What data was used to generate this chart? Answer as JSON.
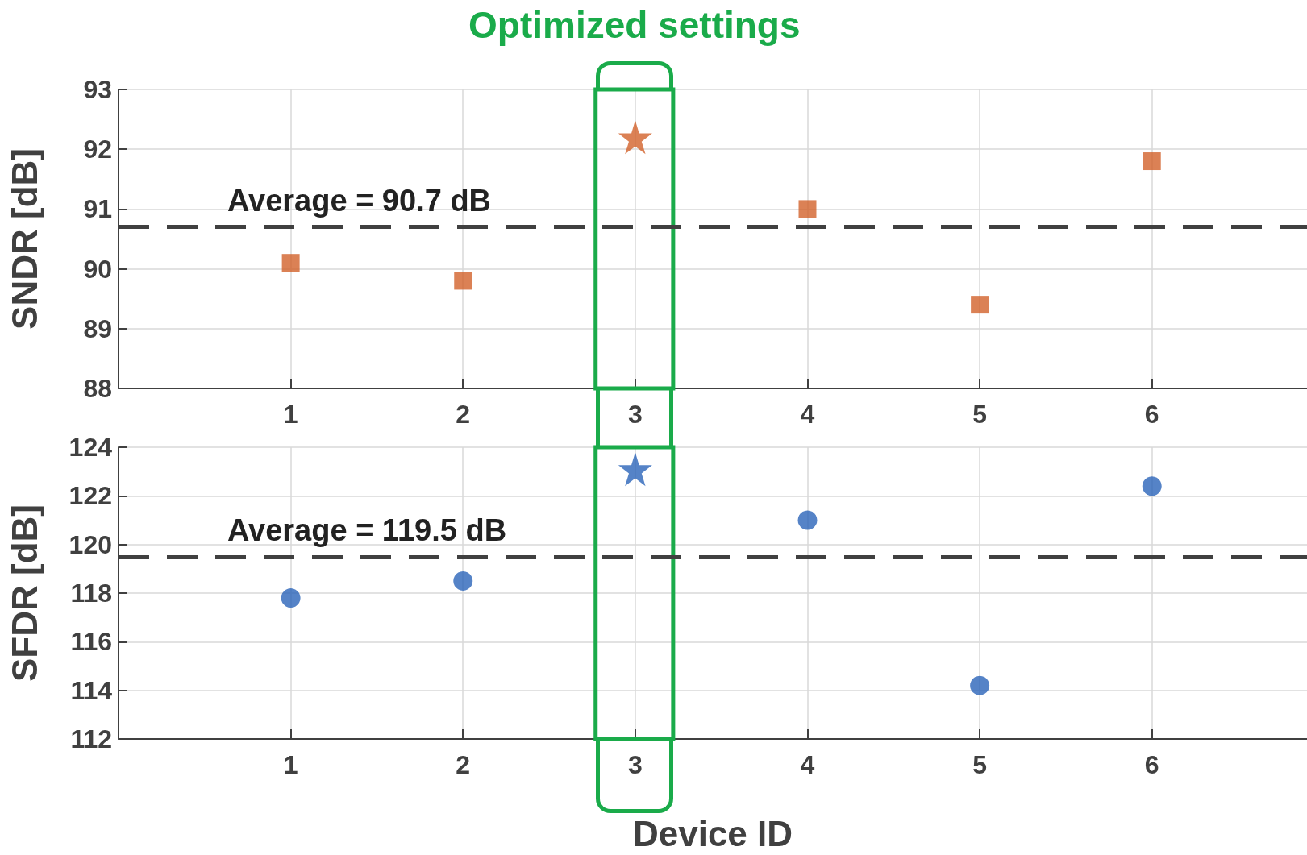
{
  "chart_data": [
    {
      "type": "scatter",
      "ylabel": "SNDR [dB]",
      "xlim": [
        0,
        6.9
      ],
      "xticks": [
        1,
        2,
        3,
        4,
        5,
        6
      ],
      "ylim": [
        88,
        93
      ],
      "yticks": [
        88,
        89,
        90,
        91,
        92,
        93
      ],
      "grid": true,
      "bands": [
        {
          "axis": "x",
          "from": 2.77,
          "to": 3.22,
          "label": "Optimized settings",
          "color": "#1aab4a"
        }
      ],
      "ref_lines": [
        {
          "axis": "y",
          "value": 90.7,
          "label": "Average = 90.7 dB",
          "color": "#404040",
          "line_style": "dashed"
        }
      ],
      "series": [
        {
          "color": "#d2622a",
          "marker": "square",
          "x": [
            1,
            2,
            4,
            5,
            6
          ],
          "values": [
            90.1,
            89.8,
            91.0,
            89.4,
            91.8
          ]
        },
        {
          "color": "#d2622a",
          "marker": "star",
          "x": [
            3
          ],
          "values": [
            92.2
          ]
        }
      ]
    },
    {
      "type": "scatter",
      "ylabel": "SFDR [dB]",
      "xlabel": "Device ID",
      "xlim": [
        0,
        6.9
      ],
      "xticks": [
        1,
        2,
        3,
        4,
        5,
        6
      ],
      "ylim": [
        112,
        124
      ],
      "yticks": [
        112,
        114,
        116,
        118,
        120,
        122,
        124
      ],
      "grid": true,
      "bands": [
        {
          "axis": "x",
          "from": 2.77,
          "to": 3.22,
          "color": "#1aab4a"
        }
      ],
      "ref_lines": [
        {
          "axis": "y",
          "value": 119.5,
          "label": "Average = 119.5 dB",
          "color": "#404040",
          "line_style": "dashed"
        }
      ],
      "series": [
        {
          "color": "#2b64b9",
          "marker": "circle",
          "x": [
            1,
            2,
            4,
            5,
            6
          ],
          "values": [
            117.8,
            118.5,
            121.0,
            114.2,
            122.4
          ]
        },
        {
          "color": "#2b64b9",
          "marker": "star",
          "x": [
            3
          ],
          "values": [
            123.1
          ]
        }
      ]
    }
  ]
}
